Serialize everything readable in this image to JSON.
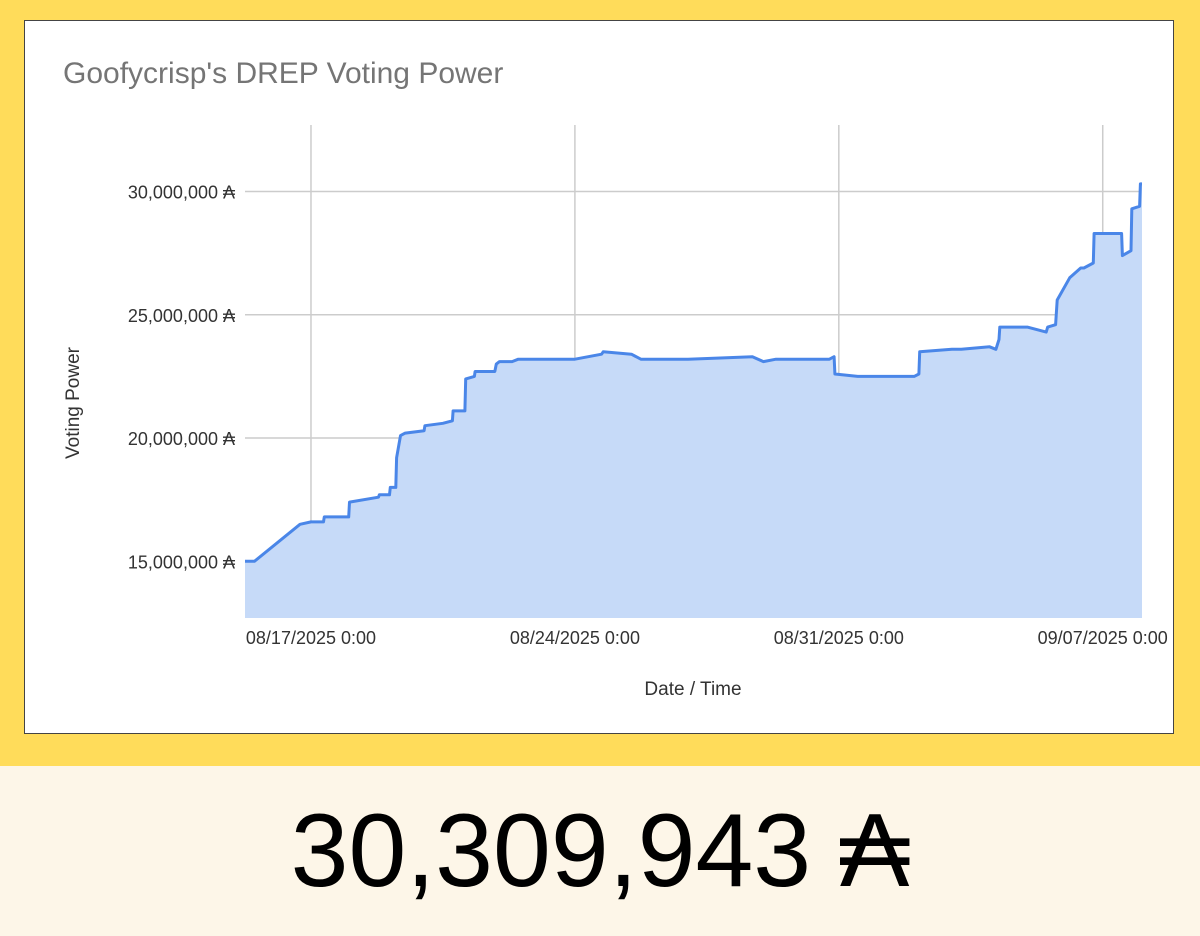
{
  "chart_data": {
    "type": "area",
    "title": "Goofycrisp's DREP Voting Power",
    "xlabel": "Date / Time",
    "ylabel": "Voting Power",
    "x_range": [
      "08/15/2025 6:00",
      "09/08/2025 1:00"
    ],
    "ylim": [
      12700000,
      32700000
    ],
    "x_ticks": [
      "08/17/2025 0:00",
      "08/24/2025 0:00",
      "08/31/2025 0:00",
      "09/07/2025 0:00"
    ],
    "y_ticks": [
      15000000,
      20000000,
      25000000,
      30000000
    ],
    "y_tick_labels": [
      "15,000,000 ₳",
      "20,000,000 ₳",
      "25,000,000 ₳",
      "30,000,000 ₳"
    ],
    "grid": true,
    "legend": "none",
    "series": [
      {
        "color": "#4a86e8",
        "fill": "#c6daf8",
        "x": [
          "08/15/2025 6:00",
          "08/15/2025 12:00",
          "08/16/2025 17:00",
          "08/17/2025 0:00",
          "08/17/2025 8:00",
          "08/17/2025 8:30",
          "08/18/2025 0:00",
          "08/18/2025 0:30",
          "08/18/2025 19:00",
          "08/18/2025 19:30",
          "08/19/2025 2:00",
          "08/19/2025 2:30",
          "08/19/2025 6:00",
          "08/19/2025 6:30",
          "08/19/2025 9:00",
          "08/19/2025 12:00",
          "08/20/2025 0:00",
          "08/20/2025 0:30",
          "08/20/2025 12:00",
          "08/20/2025 18:00",
          "08/20/2025 18:30",
          "08/21/2025 2:00",
          "08/21/2025 2:30",
          "08/21/2025 8:00",
          "08/21/2025 8:30",
          "08/21/2025 21:00",
          "08/21/2025 22:00",
          "08/22/2025 0:00",
          "08/22/2025 8:00",
          "08/22/2025 12:00",
          "08/23/2025 0:00",
          "08/24/2025 0:00",
          "08/24/2025 17:00",
          "08/24/2025 18:00",
          "08/25/2025 12:00",
          "08/25/2025 18:00",
          "08/27/2025 0:00",
          "08/28/2025 17:00",
          "08/29/2025 0:00",
          "08/29/2025 8:00",
          "08/30/2025 18:00",
          "08/30/2025 21:00",
          "08/30/2025 21:30",
          "08/31/2025 12:00",
          "09/02/2025 0:00",
          "09/02/2025 3:00",
          "09/02/2025 3:30",
          "09/03/2025 0:00",
          "09/03/2025 6:00",
          "09/04/2025 0:00",
          "09/04/2025 4:00",
          "09/04/2025 6:00",
          "09/04/2025 6:30",
          "09/05/2025 0:00",
          "09/05/2025 12:00",
          "09/05/2025 13:00",
          "09/05/2025 18:00",
          "09/05/2025 19:00",
          "09/06/2025 3:00",
          "09/06/2025 10:00",
          "09/06/2025 12:00",
          "09/06/2025 18:00",
          "09/06/2025 18:30",
          "09/07/2025 12:00",
          "09/07/2025 12:30",
          "09/07/2025 18:00",
          "09/07/2025 18:30",
          "09/07/2025 23:30",
          "09/08/2025 0:00",
          "09/08/2025 1:00"
        ],
        "values": [
          15000000,
          15000000,
          16500000,
          16600000,
          16600000,
          16800000,
          16800000,
          17400000,
          17600000,
          17700000,
          17700000,
          18000000,
          18000000,
          19200000,
          20100000,
          20200000,
          20300000,
          20500000,
          20600000,
          20700000,
          21100000,
          21100000,
          22400000,
          22500000,
          22700000,
          22700000,
          23000000,
          23100000,
          23100000,
          23200000,
          23200000,
          23200000,
          23400000,
          23500000,
          23400000,
          23200000,
          23200000,
          23300000,
          23100000,
          23200000,
          23200000,
          23300000,
          22600000,
          22500000,
          22500000,
          22600000,
          23500000,
          23600000,
          23600000,
          23700000,
          23600000,
          24000000,
          24500000,
          24500000,
          24300000,
          24500000,
          24600000,
          25600000,
          26500000,
          26900000,
          26900000,
          27100000,
          28300000,
          28300000,
          27400000,
          27600000,
          29300000,
          29400000,
          30309943,
          30309943
        ]
      }
    ]
  },
  "total": {
    "display": "30,309,943 ₳"
  }
}
